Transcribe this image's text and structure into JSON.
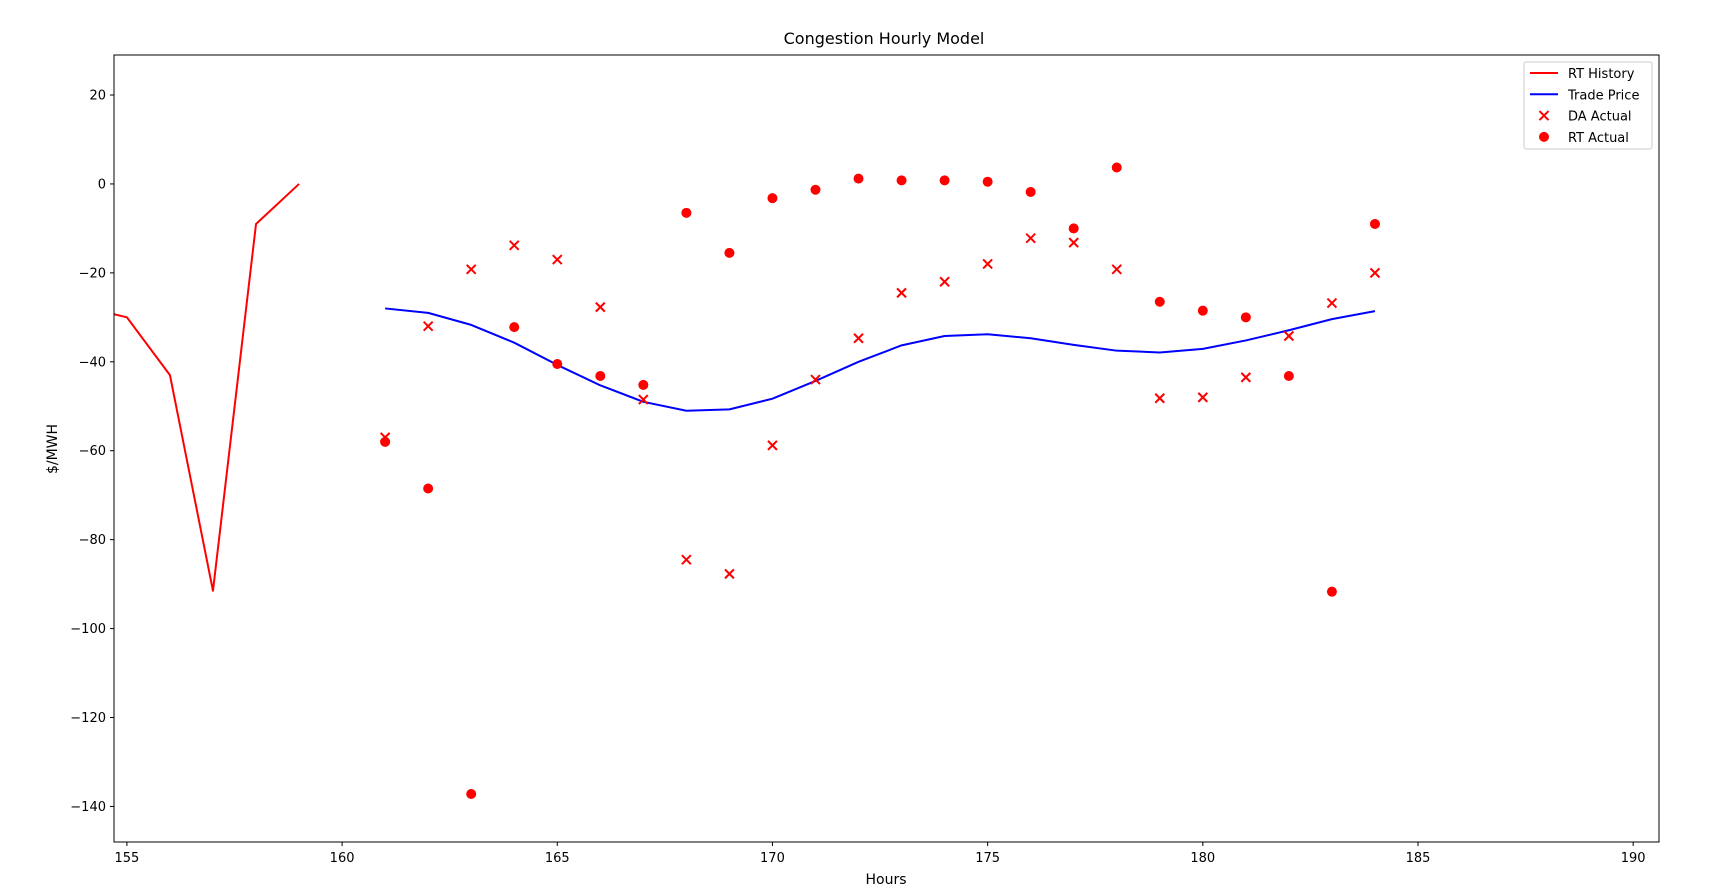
{
  "chart_data": {
    "type": "line",
    "title": "Congestion Hourly Model",
    "xlabel": "Hours",
    "ylabel": "$/MWH",
    "xlim": [
      154.7,
      190.6
    ],
    "ylim": [
      -148,
      29
    ],
    "xticks": [
      155,
      160,
      165,
      170,
      175,
      180,
      185,
      190
    ],
    "yticks": [
      20,
      0,
      -20,
      -40,
      -60,
      -80,
      -100,
      -120,
      -140
    ],
    "xtick_labels": [
      "155",
      "160",
      "165",
      "170",
      "175",
      "180",
      "185",
      "190"
    ],
    "ytick_labels": [
      "20",
      "0",
      "−20",
      "−40",
      "−60",
      "−80",
      "−100",
      "−120",
      "−140"
    ],
    "grid": false,
    "legend_position": "top-right",
    "series": [
      {
        "name": "RT History",
        "kind": "line",
        "color": "#ff0000",
        "x": [
          154.7,
          155,
          156,
          157,
          158,
          159
        ],
        "y": [
          -29.3,
          -30,
          -43,
          -91.5,
          -9,
          0
        ]
      },
      {
        "name": "Trade Price",
        "kind": "line",
        "color": "#0000ff",
        "x": [
          161,
          162,
          163,
          164,
          165,
          166,
          167,
          168,
          169,
          170,
          171,
          172,
          173,
          174,
          175,
          176,
          177,
          178,
          179,
          180,
          181,
          182,
          183,
          184
        ],
        "y": [
          -28,
          -29,
          -31.7,
          -35.7,
          -40.7,
          -45.3,
          -49,
          -51,
          -50.7,
          -48.3,
          -44.3,
          -40,
          -36.3,
          -34.2,
          -33.8,
          -34.7,
          -36.2,
          -37.5,
          -37.9,
          -37.1,
          -35.2,
          -32.9,
          -30.4,
          -28.6
        ]
      },
      {
        "name": "DA Actual",
        "kind": "scatter",
        "marker": "x",
        "color": "#ff0000",
        "x": [
          161,
          162,
          163,
          164,
          165,
          166,
          167,
          168,
          169,
          170,
          171,
          172,
          173,
          174,
          175,
          176,
          177,
          178,
          179,
          180,
          181,
          182,
          183,
          184
        ],
        "y": [
          -57,
          -32,
          -19.2,
          -13.8,
          -17,
          -27.7,
          -48.5,
          -84.5,
          -87.7,
          -58.8,
          -44,
          -34.7,
          -24.5,
          -22,
          -18,
          -12.2,
          -13.2,
          -19.2,
          -48.2,
          -48,
          -43.5,
          -34.2,
          -26.8,
          -20
        ]
      },
      {
        "name": "RT Actual",
        "kind": "scatter",
        "marker": "o",
        "color": "#ff0000",
        "x": [
          161,
          162,
          163,
          164,
          165,
          166,
          167,
          168,
          169,
          170,
          171,
          172,
          173,
          174,
          175,
          176,
          177,
          178,
          179,
          180,
          181,
          182,
          183,
          184
        ],
        "y": [
          -58,
          -68.5,
          -137.2,
          -32.2,
          -40.5,
          -43.2,
          -45.2,
          -6.5,
          -15.5,
          -3.2,
          -1.3,
          1.2,
          0.8,
          0.8,
          0.5,
          -1.8,
          -10,
          3.7,
          -26.5,
          -28.5,
          -30,
          -43.2,
          -91.7,
          -9
        ]
      }
    ]
  }
}
